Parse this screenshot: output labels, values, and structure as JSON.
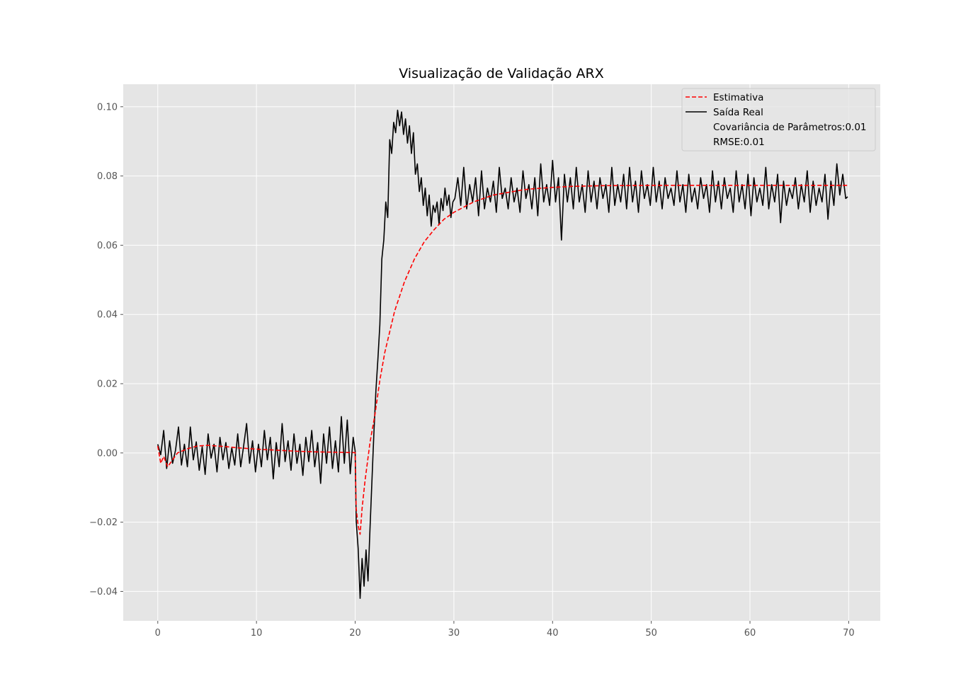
{
  "chart_data": {
    "type": "line",
    "title": "Visualização de Validação ARX",
    "xlabel": "",
    "ylabel": "",
    "xlim": [
      -3.5,
      73.2
    ],
    "ylim": [
      -0.0485,
      0.1065
    ],
    "xticks": [
      0,
      10,
      20,
      30,
      40,
      50,
      60,
      70
    ],
    "xtick_labels": [
      "0",
      "10",
      "20",
      "30",
      "40",
      "50",
      "60",
      "70"
    ],
    "yticks": [
      -0.04,
      -0.02,
      0.0,
      0.02,
      0.04,
      0.06,
      0.08,
      0.1
    ],
    "ytick_labels": [
      "−0.04",
      "−0.02",
      "0.00",
      "0.02",
      "0.04",
      "0.06",
      "0.08",
      "0.10"
    ],
    "grid": true,
    "style": "ggplot",
    "legend": {
      "position": "top-right",
      "entries": [
        {
          "label": "Estimativa",
          "style": "dashed",
          "color": "#ff0000"
        },
        {
          "label": "Saída Real",
          "style": "solid",
          "color": "#000000"
        },
        {
          "label": "Covariância de Parâmetros:0.01",
          "style": "none",
          "color": ""
        },
        {
          "label": "RMSE:0.01",
          "style": "none",
          "color": ""
        }
      ]
    },
    "series": [
      {
        "name": "Estimativa",
        "color": "#ff0000",
        "dash": true,
        "x": [
          0,
          0.3,
          0.6,
          1.0,
          1.5,
          2,
          3,
          4,
          5,
          6,
          7,
          8,
          10,
          12,
          14,
          16,
          18,
          19.5,
          20.0,
          20.1,
          20.3,
          20.5,
          20.7,
          21,
          21.5,
          22,
          22.5,
          23,
          24,
          25,
          26,
          27,
          28,
          29,
          30,
          31,
          32,
          33,
          34,
          35,
          36,
          37,
          38,
          40,
          42,
          45,
          50,
          55,
          60,
          65,
          70
        ],
        "y": [
          0.002,
          -0.003,
          -0.001,
          -0.004,
          -0.002,
          0.0,
          0.0012,
          0.002,
          0.0022,
          0.002,
          0.0018,
          0.0015,
          0.0011,
          0.0008,
          0.0005,
          0.0003,
          0.0002,
          0.0001,
          0.0001,
          -0.016,
          -0.021,
          -0.0235,
          -0.016,
          -0.008,
          0.003,
          0.011,
          0.021,
          0.029,
          0.041,
          0.0495,
          0.056,
          0.061,
          0.0645,
          0.0675,
          0.0695,
          0.071,
          0.0725,
          0.0735,
          0.0745,
          0.075,
          0.0755,
          0.076,
          0.0763,
          0.0767,
          0.077,
          0.0772,
          0.0773,
          0.0773,
          0.0773,
          0.0773,
          0.0773
        ]
      },
      {
        "name": "Saída Real",
        "color": "#000000",
        "dash": false,
        "x": [
          0,
          0.3,
          0.6,
          0.9,
          1.2,
          1.5,
          1.8,
          2.1,
          2.4,
          2.7,
          3.0,
          3.3,
          3.6,
          3.9,
          4.2,
          4.5,
          4.8,
          5.1,
          5.4,
          5.7,
          6.0,
          6.3,
          6.6,
          6.9,
          7.2,
          7.5,
          7.8,
          8.1,
          8.4,
          8.7,
          9.0,
          9.3,
          9.6,
          9.9,
          10.2,
          10.5,
          10.8,
          11.1,
          11.4,
          11.7,
          12.0,
          12.3,
          12.6,
          12.9,
          13.2,
          13.5,
          13.8,
          14.1,
          14.4,
          14.7,
          15.0,
          15.3,
          15.6,
          15.9,
          16.2,
          16.5,
          16.8,
          17.1,
          17.4,
          17.7,
          18.0,
          18.3,
          18.6,
          18.9,
          19.2,
          19.5,
          19.8,
          20.0,
          20.1,
          20.3,
          20.4,
          20.5,
          20.7,
          20.9,
          21.1,
          21.3,
          21.5,
          21.7,
          21.9,
          22.1,
          22.3,
          22.5,
          22.7,
          22.9,
          23.1,
          23.3,
          23.5,
          23.7,
          23.9,
          24.1,
          24.3,
          24.5,
          24.7,
          24.9,
          25.1,
          25.3,
          25.5,
          25.7,
          25.9,
          26.1,
          26.3,
          26.5,
          26.7,
          26.9,
          27.1,
          27.3,
          27.5,
          27.7,
          27.9,
          28.1,
          28.3,
          28.5,
          28.7,
          28.9,
          29.1,
          29.3,
          29.5,
          29.7,
          29.9,
          30.1,
          30.4,
          30.7,
          31.0,
          31.3,
          31.6,
          31.9,
          32.2,
          32.5,
          32.8,
          33.1,
          33.4,
          33.7,
          34.0,
          34.3,
          34.6,
          34.9,
          35.2,
          35.5,
          35.8,
          36.1,
          36.4,
          36.7,
          37.0,
          37.3,
          37.6,
          37.9,
          38.2,
          38.5,
          38.8,
          39.1,
          39.4,
          39.7,
          40.0,
          40.3,
          40.6,
          40.9,
          41.2,
          41.5,
          41.8,
          42.1,
          42.4,
          42.7,
          43.0,
          43.3,
          43.6,
          43.9,
          44.2,
          44.5,
          44.8,
          45.1,
          45.4,
          45.7,
          46.0,
          46.3,
          46.6,
          46.9,
          47.2,
          47.5,
          47.8,
          48.1,
          48.4,
          48.7,
          49.0,
          49.3,
          49.6,
          49.9,
          50.2,
          50.5,
          50.8,
          51.1,
          51.4,
          51.7,
          52.0,
          52.3,
          52.6,
          52.9,
          53.2,
          53.5,
          53.8,
          54.1,
          54.4,
          54.7,
          55.0,
          55.3,
          55.6,
          55.9,
          56.2,
          56.5,
          56.8,
          57.1,
          57.4,
          57.7,
          58.0,
          58.3,
          58.6,
          58.9,
          59.2,
          59.5,
          59.8,
          60.1,
          60.4,
          60.7,
          61.0,
          61.3,
          61.6,
          61.9,
          62.2,
          62.5,
          62.8,
          63.1,
          63.4,
          63.7,
          64.0,
          64.3,
          64.6,
          64.9,
          65.2,
          65.5,
          65.8,
          66.1,
          66.4,
          66.7,
          67.0,
          67.3,
          67.6,
          67.9,
          68.2,
          68.5,
          68.8,
          69.1,
          69.4,
          69.7,
          69.9
        ],
        "y": [
          0.0025,
          -0.0005,
          0.0065,
          -0.0045,
          0.0035,
          -0.003,
          0.0008,
          0.0075,
          -0.0035,
          0.0025,
          -0.004,
          0.0075,
          -0.002,
          0.0032,
          -0.005,
          0.0018,
          -0.0062,
          0.0055,
          -0.0015,
          0.0025,
          -0.0055,
          0.0045,
          -0.002,
          0.003,
          -0.0045,
          0.0015,
          -0.0035,
          0.0055,
          -0.004,
          0.002,
          0.0085,
          -0.003,
          0.0035,
          -0.0055,
          0.0025,
          -0.004,
          0.0065,
          -0.002,
          0.0045,
          -0.0075,
          0.003,
          -0.004,
          0.0085,
          -0.0025,
          0.0035,
          -0.005,
          0.0055,
          -0.003,
          0.0025,
          -0.0065,
          0.0045,
          -0.0025,
          0.0065,
          -0.004,
          0.003,
          -0.0088,
          0.0055,
          -0.003,
          0.0075,
          -0.0045,
          0.0035,
          -0.0055,
          0.0105,
          -0.003,
          0.0095,
          -0.006,
          0.0045,
          0.0005,
          -0.0195,
          -0.0275,
          -0.0345,
          -0.042,
          -0.0305,
          -0.0385,
          -0.028,
          -0.037,
          -0.022,
          -0.008,
          0.006,
          0.018,
          0.027,
          0.037,
          0.056,
          0.0615,
          0.0725,
          0.068,
          0.0905,
          0.0865,
          0.0955,
          0.0925,
          0.099,
          0.0945,
          0.0985,
          0.092,
          0.0965,
          0.0895,
          0.0945,
          0.0865,
          0.0925,
          0.0805,
          0.0835,
          0.0755,
          0.0795,
          0.0715,
          0.0765,
          0.0685,
          0.0745,
          0.0655,
          0.0715,
          0.0695,
          0.0725,
          0.066,
          0.0735,
          0.07,
          0.0765,
          0.0715,
          0.0745,
          0.068,
          0.0725,
          0.0735,
          0.0795,
          0.0715,
          0.0825,
          0.0705,
          0.0775,
          0.0725,
          0.0795,
          0.0685,
          0.0815,
          0.0705,
          0.0765,
          0.0725,
          0.0785,
          0.0695,
          0.0825,
          0.0735,
          0.0765,
          0.0705,
          0.0795,
          0.0725,
          0.0765,
          0.0695,
          0.0815,
          0.0735,
          0.0775,
          0.0705,
          0.0795,
          0.0685,
          0.0835,
          0.0725,
          0.0775,
          0.0715,
          0.0845,
          0.0725,
          0.0795,
          0.0615,
          0.0805,
          0.0725,
          0.0795,
          0.0705,
          0.0825,
          0.0725,
          0.0775,
          0.0695,
          0.0815,
          0.0725,
          0.0785,
          0.0705,
          0.0795,
          0.0735,
          0.0775,
          0.0695,
          0.0825,
          0.0715,
          0.0775,
          0.0725,
          0.0805,
          0.0705,
          0.0825,
          0.0725,
          0.0785,
          0.0695,
          0.0815,
          0.0735,
          0.0775,
          0.0715,
          0.0825,
          0.0725,
          0.0785,
          0.0705,
          0.0795,
          0.0735,
          0.0765,
          0.0715,
          0.0815,
          0.0725,
          0.0775,
          0.0695,
          0.0805,
          0.0725,
          0.0765,
          0.0705,
          0.0795,
          0.0735,
          0.0775,
          0.0695,
          0.0815,
          0.0725,
          0.0785,
          0.0705,
          0.0795,
          0.0735,
          0.0765,
          0.0695,
          0.0815,
          0.0725,
          0.0775,
          0.0705,
          0.0805,
          0.0685,
          0.0795,
          0.0725,
          0.0765,
          0.0715,
          0.0825,
          0.0705,
          0.0775,
          0.0725,
          0.0805,
          0.0665,
          0.0785,
          0.0715,
          0.0765,
          0.0735,
          0.0795,
          0.0705,
          0.0775,
          0.0725,
          0.0815,
          0.0695,
          0.0785,
          0.0715,
          0.0765,
          0.0725,
          0.0805,
          0.0675,
          0.0785,
          0.0715,
          0.0835,
          0.0745,
          0.0805,
          0.0735,
          0.074
        ]
      }
    ]
  }
}
